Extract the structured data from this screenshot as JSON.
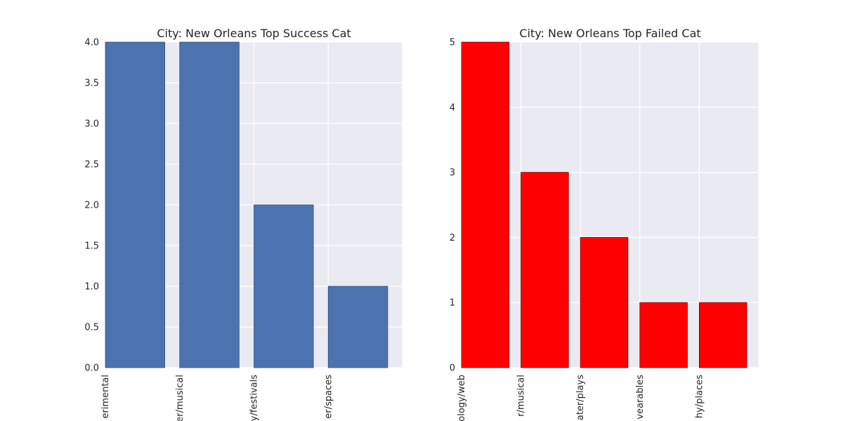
{
  "chart_data": [
    {
      "type": "bar",
      "title": "City: New Orleans Top Success Cat",
      "categories": [
        "erimental",
        "er/musical",
        "y/festivals",
        "er/spaces"
      ],
      "values": [
        4,
        4,
        2,
        1
      ],
      "ylim": [
        0,
        4.0
      ],
      "yticks": [
        "0.0",
        "0.5",
        "1.0",
        "1.5",
        "2.0",
        "2.5",
        "3.0",
        "3.5",
        "4.0"
      ],
      "color": "#4c72b0",
      "grid": true
    },
    {
      "type": "bar",
      "title": "City: New Orleans Top Failed Cat",
      "categories": [
        "ology/web",
        "r/musical",
        "ater/plays",
        "vearables",
        "hy/places"
      ],
      "values": [
        5,
        3,
        2,
        1,
        1
      ],
      "ylim": [
        0,
        5
      ],
      "yticks": [
        "0",
        "1",
        "2",
        "3",
        "4",
        "5"
      ],
      "color": "#ff0000",
      "grid": true
    }
  ]
}
